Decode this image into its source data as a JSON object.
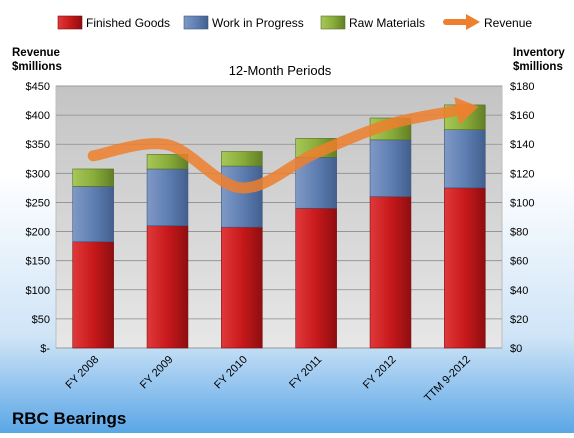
{
  "chart_data": {
    "type": "bar",
    "stacked": true,
    "company": "RBC Bearings",
    "title": "12-Month Periods",
    "left_axis_label": [
      "Revenue",
      "$millions"
    ],
    "right_axis_label": [
      "Inventory",
      "$millions"
    ],
    "categories": [
      "FY 2008",
      "FY 2009",
      "FY 2010",
      "FY 2011",
      "FY 2012",
      "TTM 9-2012"
    ],
    "left_ticks": [
      "$-",
      "$50",
      "$100",
      "$150",
      "$200",
      "$250",
      "$300",
      "$350",
      "$400",
      "$450"
    ],
    "right_ticks": [
      "$0",
      "$20",
      "$40",
      "$60",
      "$80",
      "$100",
      "$120",
      "$140",
      "$160",
      "$180"
    ],
    "left_ylim": [
      0,
      450
    ],
    "right_ylim": [
      0,
      180
    ],
    "legend_position": "top",
    "grid": true,
    "series": [
      {
        "name": "Finished Goods",
        "axis": "right",
        "color": "#c8191b",
        "values": [
          73,
          84,
          83,
          96,
          104,
          110
        ]
      },
      {
        "name": "Work in Progress",
        "axis": "right",
        "color": "#5f7fb3",
        "values": [
          38,
          39,
          42,
          35,
          39,
          40
        ]
      },
      {
        "name": "Raw Materials",
        "axis": "right",
        "color": "#8aae3a",
        "values": [
          12,
          10,
          10,
          13,
          15,
          17
        ]
      }
    ],
    "line_series": {
      "name": "Revenue",
      "axis": "left",
      "color": "#ee7f2d",
      "values": [
        330,
        349,
        275,
        335,
        385,
        410
      ]
    }
  }
}
